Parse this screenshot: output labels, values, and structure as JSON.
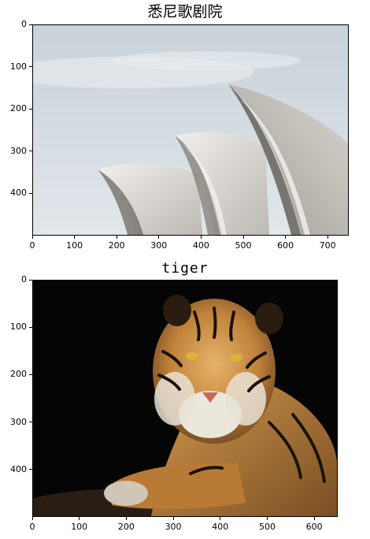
{
  "chart_data": [
    {
      "type": "image",
      "title": "悉尼歌剧院",
      "x_ticks": [
        0,
        100,
        200,
        300,
        400,
        500,
        600,
        700
      ],
      "y_ticks": [
        0,
        100,
        200,
        300,
        400
      ],
      "xlim": [
        0,
        750
      ],
      "ylim": [
        500,
        0
      ],
      "grid": false,
      "colors": {
        "sky": "#d4dbe1",
        "shell_light": "#e8e6e2",
        "shell_mid": "#b9b6b0",
        "shell_shadow": "#6f6a63"
      }
    },
    {
      "type": "image",
      "title": "tiger",
      "x_ticks": [
        0,
        100,
        200,
        300,
        400,
        500,
        600
      ],
      "y_ticks": [
        0,
        100,
        200,
        300,
        400
      ],
      "xlim": [
        0,
        650
      ],
      "ylim": [
        500,
        0
      ],
      "grid": false,
      "colors": {
        "background": "#050505",
        "fur_orange": "#c98a3c",
        "fur_white": "#e9e4da",
        "stripes": "#1a130c",
        "ground": "#2a1d14"
      }
    }
  ]
}
